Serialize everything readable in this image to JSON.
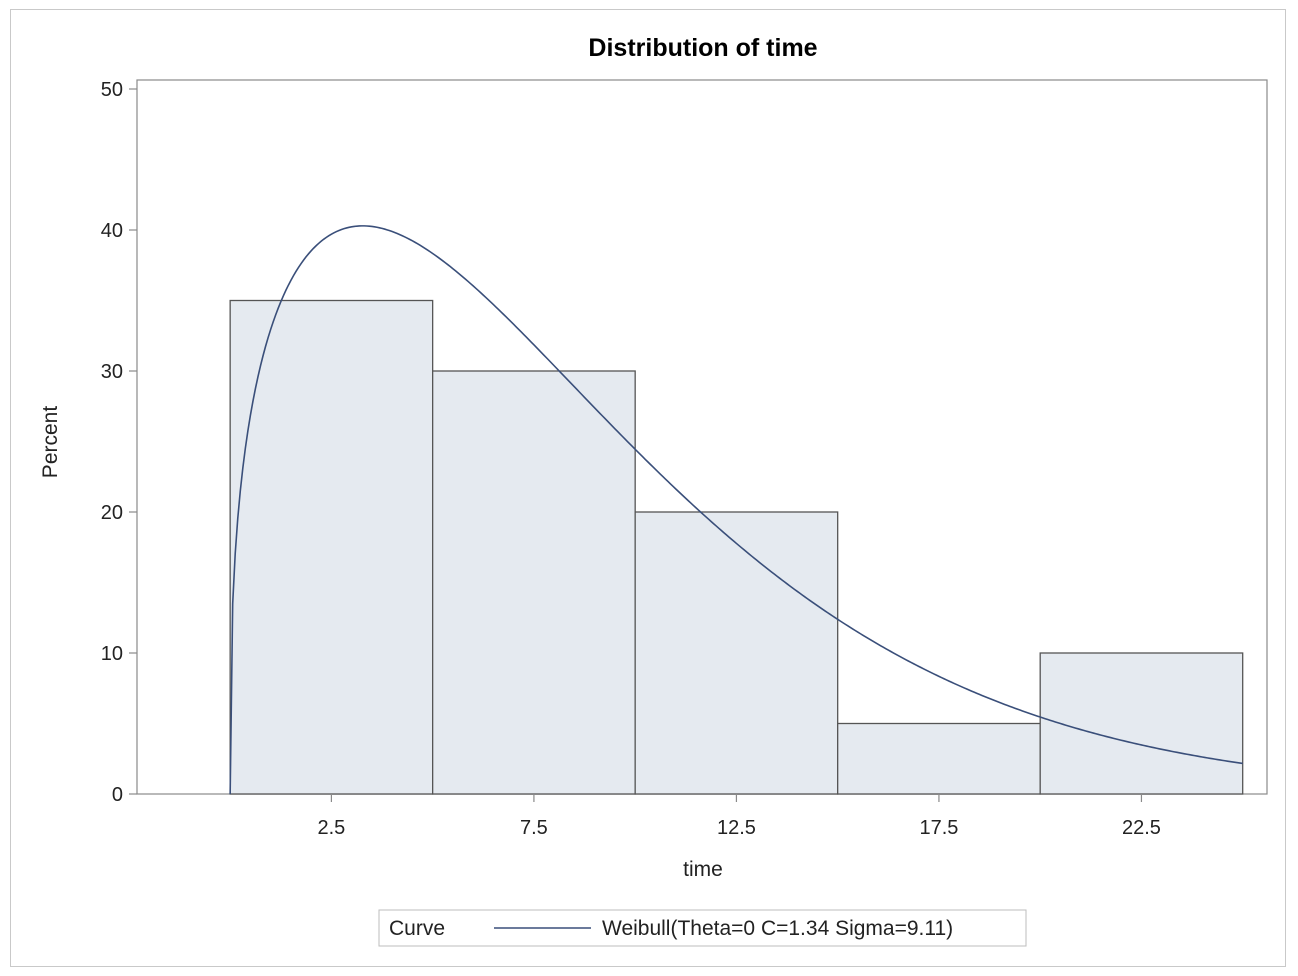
{
  "chart_data": {
    "type": "bar",
    "title": "Distribution of time",
    "xlabel": "time",
    "ylabel": "Percent",
    "bins": [
      {
        "center": 2.5,
        "value": 35
      },
      {
        "center": 7.5,
        "value": 30
      },
      {
        "center": 12.5,
        "value": 20
      },
      {
        "center": 17.5,
        "value": 5
      },
      {
        "center": 22.5,
        "value": 10
      }
    ],
    "bin_width": 5,
    "xlim": [
      -2.3,
      25.6
    ],
    "ylim": [
      0,
      50
    ],
    "yticks": [
      0,
      10,
      20,
      30,
      40,
      50
    ],
    "xticks": [
      2.5,
      7.5,
      12.5,
      17.5,
      22.5
    ],
    "xtick_labels": [
      "2.5",
      "7.5",
      "12.5",
      "17.5",
      "22.5"
    ],
    "ytick_labels": [
      "0",
      "10",
      "20",
      "30",
      "40",
      "50"
    ],
    "curve": {
      "type": "weibull",
      "theta": 0,
      "c": 1.34,
      "sigma": 9.11,
      "name": "Weibull(Theta=0 C=1.34 Sigma=9.11)",
      "x_range": [
        0,
        25
      ]
    },
    "legend": {
      "title": "Curve",
      "entries": [
        "Weibull(Theta=0 C=1.34 Sigma=9.11)"
      ],
      "position": "bottom"
    },
    "grid": false,
    "colors": {
      "bar_fill": "#e5eaf0",
      "bar_stroke": "#555555",
      "curve": "#3a4f7a",
      "axis": "#8a8a8a"
    }
  }
}
